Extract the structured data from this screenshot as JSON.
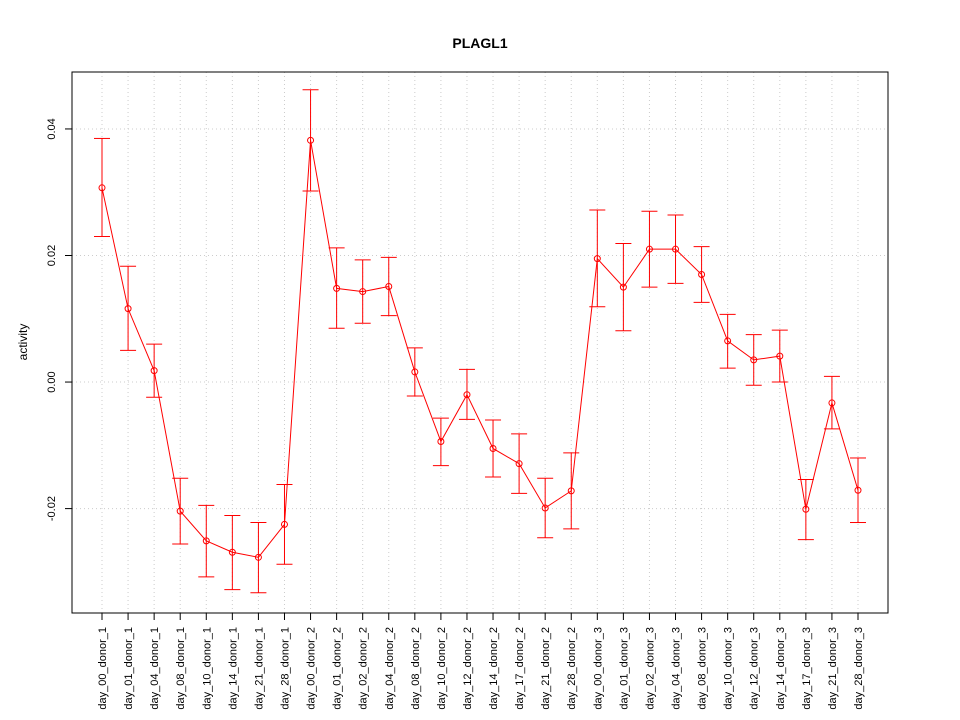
{
  "chart_data": {
    "type": "line",
    "title": "PLAGL1",
    "xlabel": "",
    "ylabel": "activity",
    "categories": [
      "day_00_donor_1",
      "day_01_donor_1",
      "day_04_donor_1",
      "day_08_donor_1",
      "day_10_donor_1",
      "day_14_donor_1",
      "day_21_donor_1",
      "day_28_donor_1",
      "day_00_donor_2",
      "day_01_donor_2",
      "day_02_donor_2",
      "day_04_donor_2",
      "day_08_donor_2",
      "day_10_donor_2",
      "day_12_donor_2",
      "day_14_donor_2",
      "day_17_donor_2",
      "day_21_donor_2",
      "day_28_donor_2",
      "day_00_donor_3",
      "day_01_donor_3",
      "day_02_donor_3",
      "day_04_donor_3",
      "day_08_donor_3",
      "day_10_donor_3",
      "day_12_donor_3",
      "day_14_donor_3",
      "day_17_donor_3",
      "day_21_donor_3",
      "day_28_donor_3"
    ],
    "series": [
      {
        "color": "#ff0000",
        "values": [
          0.0307,
          0.0116,
          0.0018,
          -0.0204,
          -0.0251,
          -0.0269,
          -0.0277,
          -0.0225,
          0.0382,
          0.0148,
          0.0143,
          0.0151,
          0.0016,
          -0.0094,
          -0.002,
          -0.0105,
          -0.0129,
          -0.0199,
          -0.0172,
          0.0195,
          0.015,
          0.021,
          0.021,
          0.017,
          0.0065,
          0.0035,
          0.0041,
          -0.0201,
          -0.0033,
          -0.0171
        ],
        "upper": [
          0.0385,
          0.0183,
          0.006,
          -0.0152,
          -0.0195,
          -0.0211,
          -0.0222,
          -0.0162,
          0.0462,
          0.0212,
          0.0193,
          0.0197,
          0.0054,
          -0.0057,
          0.002,
          -0.006,
          -0.0082,
          -0.0152,
          -0.0112,
          0.0272,
          0.0219,
          0.027,
          0.0264,
          0.0214,
          0.0107,
          0.0075,
          0.0082,
          -0.0154,
          0.0009,
          -0.012
        ],
        "lower": [
          0.023,
          0.005,
          -0.0024,
          -0.0256,
          -0.0308,
          -0.0328,
          -0.0333,
          -0.0288,
          0.0302,
          0.0085,
          0.0093,
          0.0105,
          -0.0022,
          -0.0132,
          -0.0059,
          -0.015,
          -0.0176,
          -0.0246,
          -0.0232,
          0.0119,
          0.0081,
          0.015,
          0.0156,
          0.0126,
          0.0022,
          -0.0005,
          0.0,
          -0.0249,
          -0.0074,
          -0.0222
        ]
      }
    ],
    "yticks": [
      -0.02,
      0.0,
      0.02,
      0.04
    ],
    "ytick_labels": [
      "-0.02",
      "0.00",
      "0.02",
      "0.04"
    ],
    "ylim": [
      -0.0365,
      0.049
    ],
    "grid": true
  }
}
